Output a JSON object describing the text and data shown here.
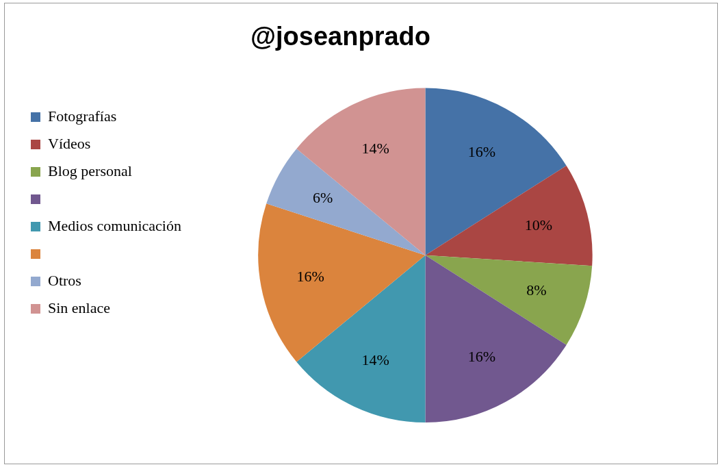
{
  "chart_data": {
    "type": "pie",
    "title": "@joseanprado",
    "categories": [
      "Fotografías",
      "Vídeos",
      "Blog personal",
      null,
      "Medios comunicación",
      null,
      "Otros",
      "Sin enlace"
    ],
    "values": [
      16,
      10,
      8,
      16,
      14,
      16,
      6,
      14
    ],
    "colors": [
      "#4572a7",
      "#aa4643",
      "#89a54e",
      "#71588f",
      "#4198af",
      "#db843d",
      "#93a9cf",
      "#d19392"
    ],
    "value_labels": [
      "16%",
      "10%",
      "8%",
      "16%",
      "14%",
      "16%",
      "6%",
      "14%"
    ],
    "legend": "left"
  }
}
